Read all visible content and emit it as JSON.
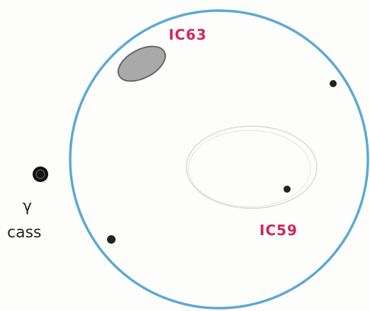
{
  "sketch": {
    "objects": [
      {
        "label": "IC63"
      },
      {
        "label": "IC59"
      }
    ],
    "star": {
      "symbol": "γ",
      "constellation": "cass"
    }
  }
}
